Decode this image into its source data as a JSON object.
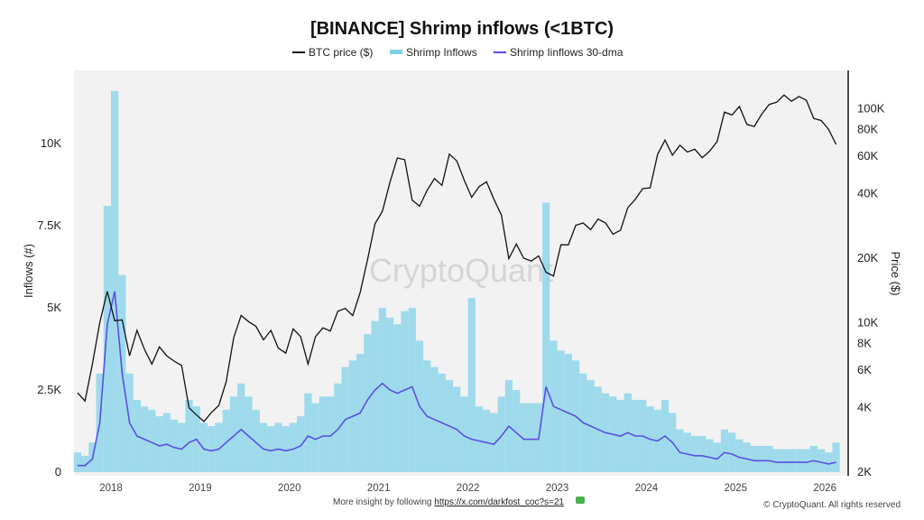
{
  "chart_data": {
    "type": "line",
    "title": "[BINANCE] Shrimp inflows (<1BTC)",
    "legend": [
      {
        "name": "BTC price ($)",
        "color": "#111111"
      },
      {
        "name": "Shrimp Inflows",
        "color": "#7fd0e6"
      },
      {
        "name": "Shrimp Iinflows 30-dma",
        "color": "#5a4fe0"
      }
    ],
    "legend_placement": "top-center",
    "ylabel": "Inflows (#)",
    "y2label": "Price ($)",
    "y2_scale": "log",
    "ylim": [
      0,
      11600
    ],
    "y2lim": [
      2000,
      150000
    ],
    "y_ticks": [
      "0",
      "2.5K",
      "5K",
      "7.5K",
      "10K"
    ],
    "y_tick_values": [
      0,
      2500,
      5000,
      7500,
      10000
    ],
    "y2_ticks": [
      "2K",
      "4K",
      "6K",
      "8K",
      "10K",
      "20K",
      "40K",
      "60K",
      "80K",
      "100K"
    ],
    "y2_tick_values": [
      2000,
      4000,
      6000,
      8000,
      10000,
      20000,
      40000,
      60000,
      80000,
      100000
    ],
    "x_ticks": [
      "2018",
      "2019",
      "2020",
      "2021",
      "2022",
      "2023",
      "2024",
      "2025",
      "2026"
    ],
    "grid": false,
    "x_start": "2017-08",
    "x_interval": "month",
    "btc_price": [
      4700,
      4300,
      6400,
      10000,
      14000,
      10200,
      10300,
      7000,
      9200,
      7500,
      6400,
      7700,
      7000,
      6600,
      6300,
      4000,
      3700,
      3450,
      3800,
      4100,
      5300,
      8500,
      10800,
      10100,
      9600,
      8300,
      9200,
      7600,
      7200,
      9350,
      8600,
      6400,
      8600,
      9450,
      9140,
      11300,
      11650,
      10780,
      13800,
      19700,
      29000,
      33100,
      45200,
      58800,
      57700,
      37300,
      35000,
      41500,
      47100,
      43800,
      61300,
      57000,
      46300,
      38500,
      43200,
      45500,
      37700,
      31800,
      19900,
      23300,
      20000,
      19400,
      20500,
      17200,
      16500,
      23100,
      23100,
      28500,
      29200,
      27200,
      30500,
      29200,
      25900,
      27000,
      34500,
      37700,
      42300,
      42600,
      61200,
      71300,
      60600,
      67500,
      62700,
      64600,
      59000,
      63300,
      70200,
      96400,
      93400,
      102400,
      84400,
      82500,
      94200,
      104600,
      107100,
      115700,
      108200,
      114000,
      109500,
      90000,
      88000,
      80000,
      68000
    ],
    "shrimp_inflows": [
      600,
      500,
      900,
      3000,
      8100,
      11600,
      6000,
      3000,
      2200,
      2000,
      1900,
      1700,
      1800,
      1600,
      1500,
      2200,
      2000,
      1500,
      1400,
      1500,
      1900,
      2300,
      2700,
      2300,
      1900,
      1500,
      1400,
      1500,
      1400,
      1500,
      1700,
      2400,
      2100,
      2300,
      2300,
      2700,
      3200,
      3400,
      3600,
      4200,
      4600,
      5000,
      4700,
      4500,
      4900,
      5000,
      4000,
      3400,
      3200,
      3000,
      2800,
      2600,
      2300,
      5300,
      2000,
      1900,
      1800,
      2300,
      2800,
      2500,
      2100,
      2100,
      2100,
      8200,
      4000,
      3700,
      3600,
      3400,
      3000,
      2800,
      2600,
      2400,
      2300,
      2200,
      2400,
      2200,
      2200,
      2000,
      1900,
      2200,
      1800,
      1300,
      1200,
      1100,
      1100,
      1000,
      900,
      1300,
      1200,
      1000,
      900,
      800,
      800,
      800,
      700,
      700,
      700,
      700,
      700,
      800,
      700,
      600,
      900
    ],
    "shrimp_inflows_30dma": [
      200,
      200,
      400,
      1500,
      4500,
      5500,
      3000,
      1500,
      1100,
      1000,
      900,
      800,
      850,
      750,
      700,
      900,
      1000,
      700,
      650,
      700,
      900,
      1100,
      1300,
      1100,
      900,
      700,
      650,
      700,
      650,
      700,
      800,
      1100,
      1000,
      1100,
      1100,
      1300,
      1600,
      1700,
      1800,
      2200,
      2500,
      2700,
      2500,
      2400,
      2500,
      2600,
      2000,
      1700,
      1600,
      1500,
      1400,
      1300,
      1100,
      1000,
      950,
      900,
      850,
      1100,
      1400,
      1200,
      1000,
      1000,
      1000,
      2600,
      2000,
      1900,
      1800,
      1700,
      1500,
      1400,
      1300,
      1200,
      1150,
      1100,
      1200,
      1100,
      1100,
      1000,
      950,
      1100,
      900,
      600,
      550,
      500,
      500,
      450,
      400,
      600,
      550,
      450,
      400,
      350,
      350,
      350,
      300,
      300,
      300,
      300,
      300,
      350,
      300,
      250,
      300
    ]
  },
  "watermark": "CryptoQuant",
  "footer": {
    "insight_text": "More insight by following ",
    "link": "https://x.com/darkfost_coc?s=21",
    "copyright": "© CryptoQuant. All rights reserved"
  }
}
